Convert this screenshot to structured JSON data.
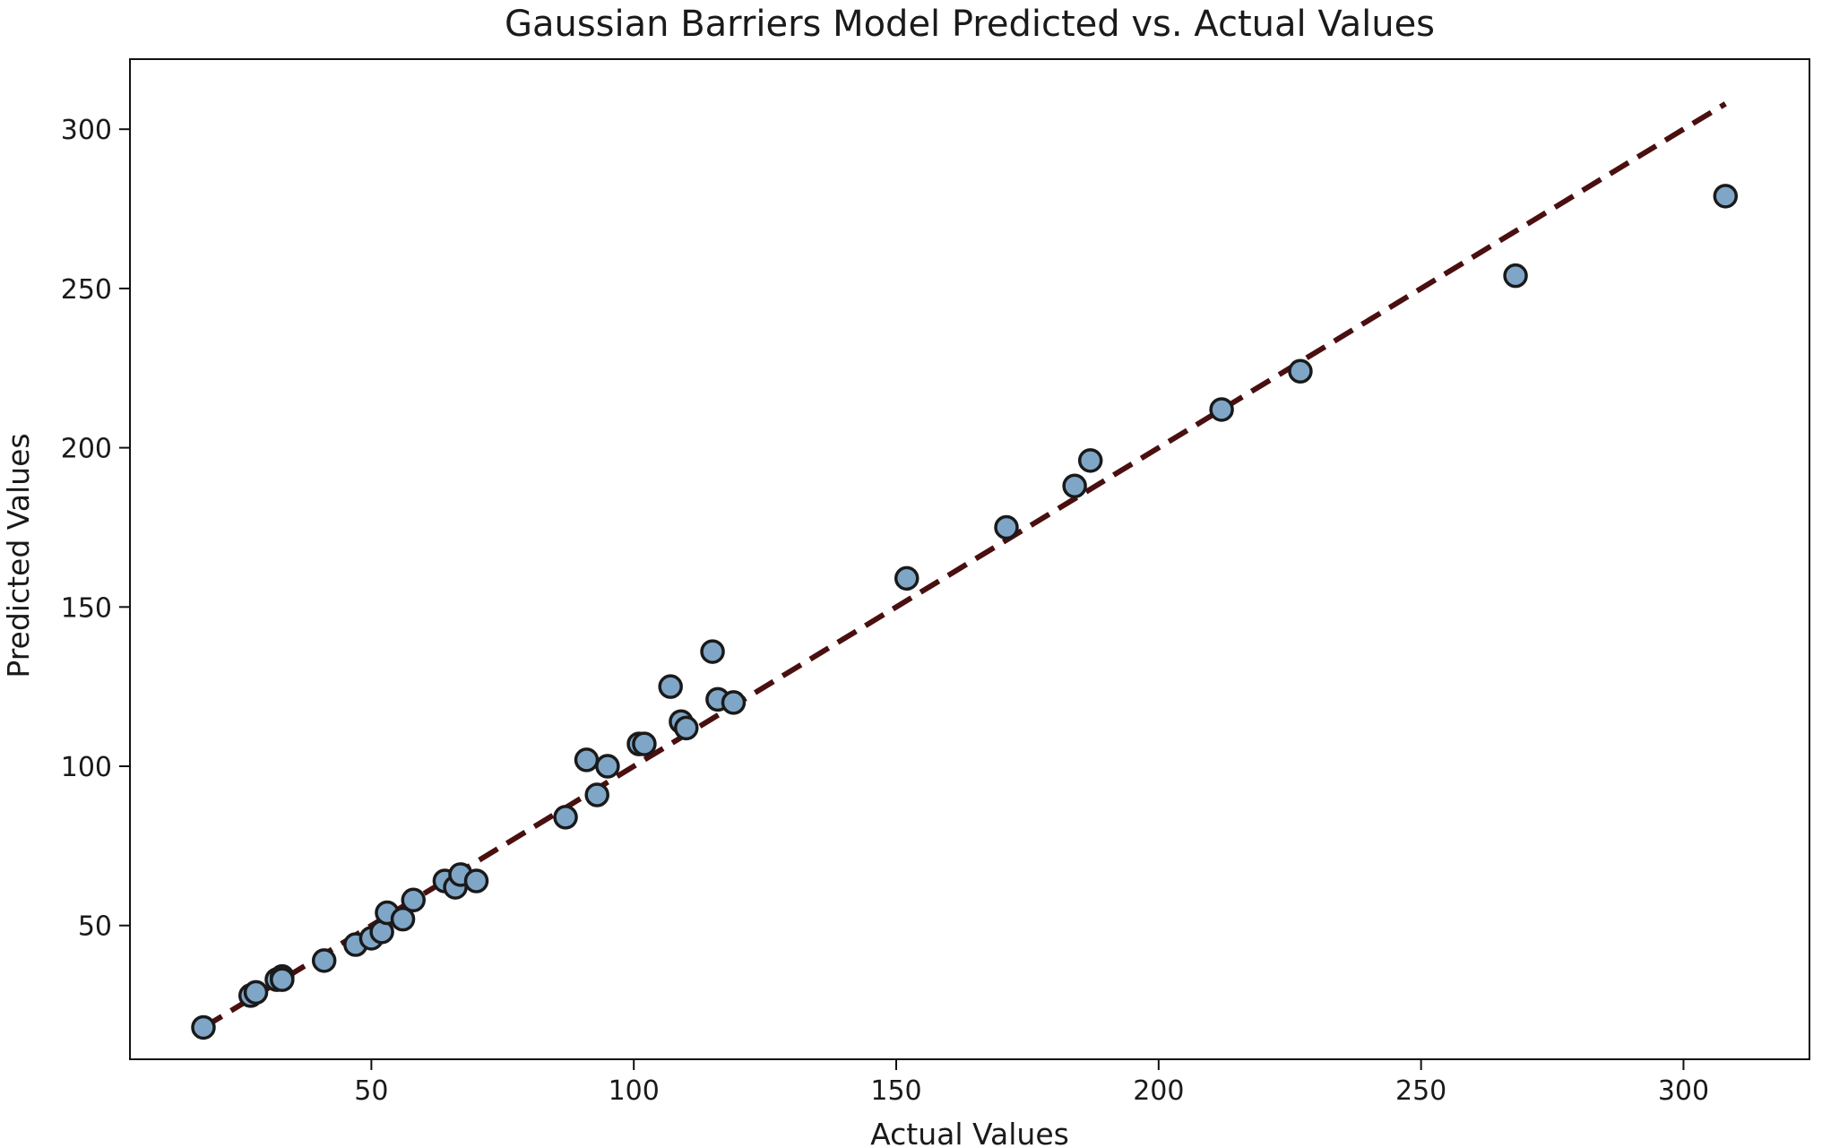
{
  "chart_data": {
    "type": "scatter",
    "title": "Gaussian Barriers Model Predicted vs. Actual Values",
    "xlabel": "Actual Values",
    "ylabel": "Predicted Values",
    "xlim": [
      4,
      324
    ],
    "ylim": [
      8,
      322
    ],
    "xticks": [
      50,
      100,
      150,
      200,
      250,
      300
    ],
    "yticks": [
      50,
      100,
      150,
      200,
      250,
      300
    ],
    "xtick_labels": [
      "50",
      "100",
      "150",
      "200",
      "250",
      "300"
    ],
    "ytick_labels": [
      "50",
      "100",
      "150",
      "200",
      "250",
      "300"
    ],
    "grid": false,
    "reference_line": {
      "x": [
        18,
        308
      ],
      "y": [
        18,
        308
      ],
      "style": "dashed",
      "color": "#4a0f0f"
    },
    "marker_color": "#7fa6c6",
    "marker_edge_color": "#1a1a1a",
    "points": [
      {
        "x": 18,
        "y": 18
      },
      {
        "x": 27,
        "y": 28
      },
      {
        "x": 28,
        "y": 29
      },
      {
        "x": 32,
        "y": 33
      },
      {
        "x": 33,
        "y": 34
      },
      {
        "x": 33,
        "y": 33
      },
      {
        "x": 41,
        "y": 39
      },
      {
        "x": 47,
        "y": 44
      },
      {
        "x": 50,
        "y": 46
      },
      {
        "x": 52,
        "y": 48
      },
      {
        "x": 53,
        "y": 54
      },
      {
        "x": 56,
        "y": 52
      },
      {
        "x": 58,
        "y": 58
      },
      {
        "x": 64,
        "y": 64
      },
      {
        "x": 66,
        "y": 62
      },
      {
        "x": 67,
        "y": 66
      },
      {
        "x": 70,
        "y": 64
      },
      {
        "x": 87,
        "y": 84
      },
      {
        "x": 91,
        "y": 102
      },
      {
        "x": 93,
        "y": 91
      },
      {
        "x": 95,
        "y": 100
      },
      {
        "x": 101,
        "y": 107
      },
      {
        "x": 102,
        "y": 107
      },
      {
        "x": 107,
        "y": 125
      },
      {
        "x": 109,
        "y": 114
      },
      {
        "x": 110,
        "y": 112
      },
      {
        "x": 115,
        "y": 136
      },
      {
        "x": 116,
        "y": 121
      },
      {
        "x": 119,
        "y": 120
      },
      {
        "x": 152,
        "y": 159
      },
      {
        "x": 171,
        "y": 175
      },
      {
        "x": 184,
        "y": 188
      },
      {
        "x": 187,
        "y": 196
      },
      {
        "x": 212,
        "y": 212
      },
      {
        "x": 227,
        "y": 224
      },
      {
        "x": 268,
        "y": 254
      },
      {
        "x": 308,
        "y": 279
      }
    ]
  }
}
